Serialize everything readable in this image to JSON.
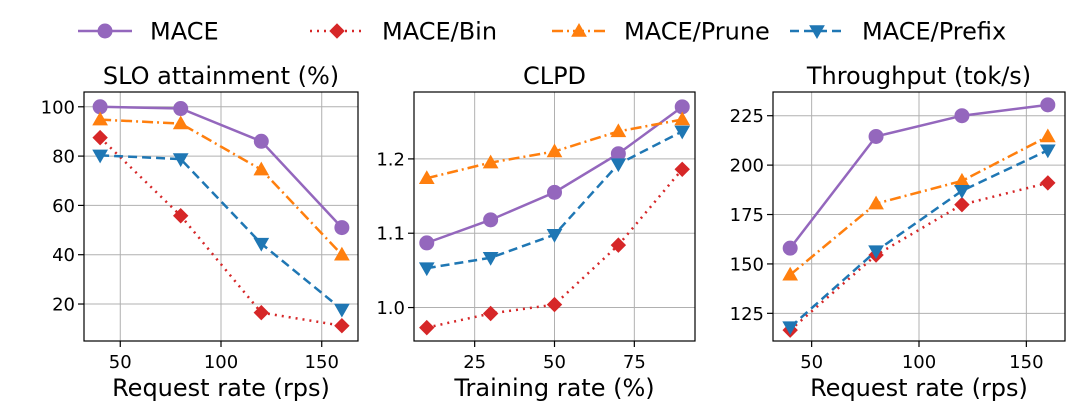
{
  "legend": {
    "placement": "top-center",
    "entries": [
      {
        "name": "MACE",
        "color": "#9467bd",
        "marker": "circle",
        "dash": "solid"
      },
      {
        "name": "MACE/Bin",
        "color": "#d62728",
        "marker": "diamond",
        "dash": "dotted"
      },
      {
        "name": "MACE/Prune",
        "color": "#ff7f0e",
        "marker": "triangle-up",
        "dash": "dashdot"
      },
      {
        "name": "MACE/Prefix",
        "color": "#1f77b4",
        "marker": "triangle-down",
        "dash": "dashed"
      }
    ]
  },
  "chart_data": [
    {
      "type": "line",
      "title": "SLO attainment (%)",
      "xlabel": "Request rate (rps)",
      "ylabel": "",
      "x": [
        40,
        80,
        120,
        160
      ],
      "xlim": [
        32,
        168
      ],
      "ylim": [
        5,
        106
      ],
      "xticks": [
        50,
        100,
        150
      ],
      "yticks": [
        20,
        40,
        60,
        80,
        100
      ],
      "xtick_labels": [
        "50",
        "100",
        "150"
      ],
      "ytick_labels": [
        "20",
        "40",
        "60",
        "80",
        "100"
      ],
      "grid": true,
      "series": [
        {
          "name": "MACE",
          "values": [
            100,
            99.3,
            86,
            51
          ]
        },
        {
          "name": "MACE/Bin",
          "values": [
            87.5,
            55.8,
            16.5,
            11.2
          ]
        },
        {
          "name": "MACE/Prune",
          "values": [
            94.8,
            93.2,
            74.5,
            40
          ]
        },
        {
          "name": "MACE/Prefix",
          "values": [
            80.3,
            78.8,
            44.5,
            17.8
          ]
        }
      ]
    },
    {
      "type": "line",
      "title": "CLPD",
      "xlabel": "Training rate (%)",
      "ylabel": "",
      "x": [
        10,
        30,
        50,
        70,
        90
      ],
      "xlim": [
        6,
        94
      ],
      "ylim": [
        0.955,
        1.29
      ],
      "xticks": [
        25,
        50,
        75
      ],
      "yticks": [
        1.0,
        1.1,
        1.2
      ],
      "xtick_labels": [
        "25",
        "50",
        "75"
      ],
      "ytick_labels": [
        "1.0",
        "1.1",
        "1.2"
      ],
      "grid": true,
      "series": [
        {
          "name": "MACE",
          "values": [
            1.087,
            1.118,
            1.155,
            1.207,
            1.27
          ]
        },
        {
          "name": "MACE/Bin",
          "values": [
            0.973,
            0.992,
            1.004,
            1.084,
            1.186
          ]
        },
        {
          "name": "MACE/Prune",
          "values": [
            1.174,
            1.195,
            1.21,
            1.237,
            1.253
          ]
        },
        {
          "name": "MACE/Prefix",
          "values": [
            1.053,
            1.067,
            1.098,
            1.193,
            1.237
          ]
        }
      ]
    },
    {
      "type": "line",
      "title": "Throughput (tok/s)",
      "xlabel": "Request rate (rps)",
      "ylabel": "",
      "x": [
        40,
        80,
        120,
        160
      ],
      "xlim": [
        32,
        168
      ],
      "ylim": [
        111,
        237
      ],
      "xticks": [
        50,
        100,
        150
      ],
      "yticks": [
        125,
        150,
        175,
        200,
        225
      ],
      "xtick_labels": [
        "50",
        "100",
        "150"
      ],
      "ytick_labels": [
        "125",
        "150",
        "175",
        "200",
        "225"
      ],
      "grid": true,
      "series": [
        {
          "name": "MACE",
          "values": [
            158,
            214.5,
            225,
            230.5
          ]
        },
        {
          "name": "MACE/Bin",
          "values": [
            116.5,
            154.5,
            180,
            191
          ]
        },
        {
          "name": "MACE/Prune",
          "values": [
            144.5,
            180.5,
            192,
            214.5
          ]
        },
        {
          "name": "MACE/Prefix",
          "values": [
            118,
            156.5,
            187,
            207.5
          ]
        }
      ]
    }
  ]
}
